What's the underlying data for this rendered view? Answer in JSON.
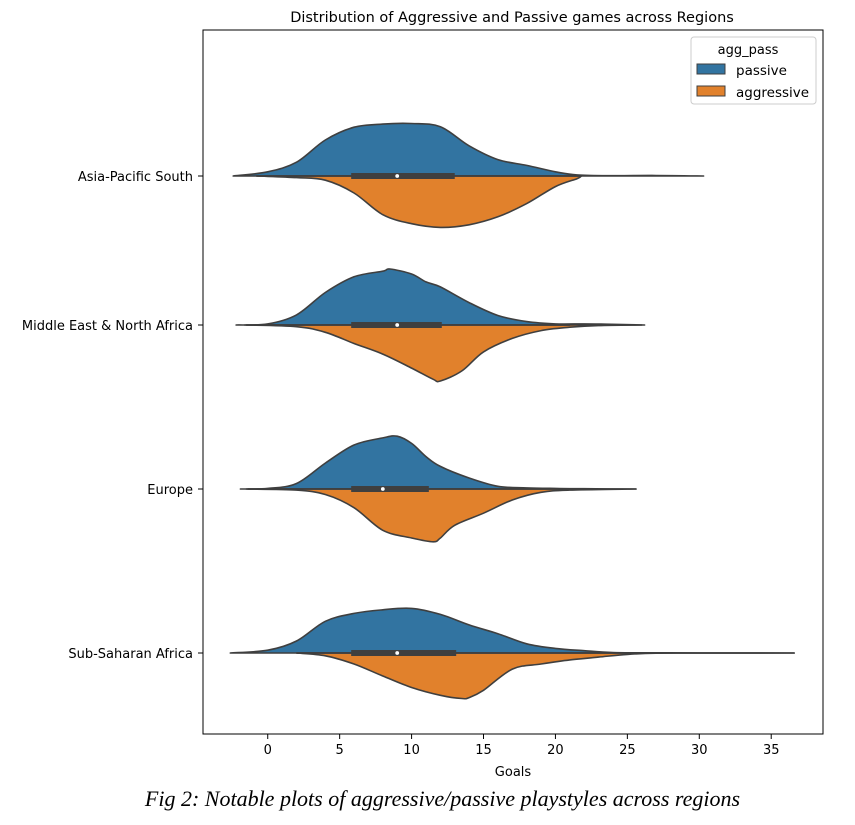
{
  "caption": "Fig 2: Notable plots of aggressive/passive playstyles across regions",
  "colors": {
    "passive": "#3274a1",
    "aggressive": "#e1812c",
    "outline": "#3f3f3f",
    "box": "#3f3f3f",
    "median": "#ffffff"
  },
  "chart_data": {
    "type": "violin",
    "split": true,
    "title": "Distribution of Aggressive and Passive games across Regions",
    "xlabel": "Goals",
    "ylabel": "",
    "xlim": [
      -4.5,
      38.6
    ],
    "xticks": [
      0,
      5,
      10,
      15,
      20,
      25,
      30,
      35
    ],
    "grid": false,
    "legend": {
      "title": "agg_pass",
      "position": "top-right",
      "entries": [
        "passive",
        "aggressive"
      ]
    },
    "categories": [
      "Asia-Pacific South",
      "Middle East & North Africa",
      "Europe",
      "Sub-Saharan Africa"
    ],
    "series": [
      {
        "name": "passive",
        "side": "upper",
        "profiles": [
          [
            [
              -2.4,
              0
            ],
            [
              0,
              0.08
            ],
            [
              2,
              0.26
            ],
            [
              4,
              0.68
            ],
            [
              6,
              0.92
            ],
            [
              8,
              0.98
            ],
            [
              10,
              0.99
            ],
            [
              12,
              0.93
            ],
            [
              14,
              0.57
            ],
            [
              16,
              0.31
            ],
            [
              18,
              0.2
            ],
            [
              20,
              0.08
            ],
            [
              21.5,
              0.02
            ],
            [
              24,
              0.005
            ],
            [
              27,
              0.01
            ],
            [
              30.3,
              0
            ]
          ],
          [
            [
              -2.2,
              0
            ],
            [
              0,
              0.02
            ],
            [
              2,
              0.18
            ],
            [
              4,
              0.58
            ],
            [
              6,
              0.86
            ],
            [
              8,
              0.96
            ],
            [
              8.5,
              1
            ],
            [
              10,
              0.91
            ],
            [
              11,
              0.77
            ],
            [
              12,
              0.68
            ],
            [
              14,
              0.4
            ],
            [
              16,
              0.17
            ],
            [
              18,
              0.06
            ],
            [
              20,
              0.02
            ],
            [
              22,
              0.02
            ],
            [
              23.5,
              0.015
            ],
            [
              26.2,
              0
            ]
          ],
          [
            [
              -1.9,
              0
            ],
            [
              0,
              0.01
            ],
            [
              2,
              0.1
            ],
            [
              4,
              0.47
            ],
            [
              6,
              0.8
            ],
            [
              8,
              0.93
            ],
            [
              9,
              0.96
            ],
            [
              10,
              0.83
            ],
            [
              11,
              0.59
            ],
            [
              12,
              0.41
            ],
            [
              14,
              0.2
            ],
            [
              16,
              0.05
            ],
            [
              18,
              0.02
            ],
            [
              20,
              0.01
            ],
            [
              22,
              0.005
            ],
            [
              25.6,
              0
            ]
          ],
          [
            [
              -2.6,
              0
            ],
            [
              0,
              0.06
            ],
            [
              2,
              0.26
            ],
            [
              4,
              0.69
            ],
            [
              6,
              0.86
            ],
            [
              8,
              0.94
            ],
            [
              10,
              0.97
            ],
            [
              12,
              0.84
            ],
            [
              14,
              0.61
            ],
            [
              16,
              0.42
            ],
            [
              18,
              0.2
            ],
            [
              20,
              0.1
            ],
            [
              22,
              0.05
            ],
            [
              24,
              0.01
            ],
            [
              27,
              0.005
            ],
            [
              30,
              0.002
            ],
            [
              36.6,
              0
            ]
          ]
        ]
      },
      {
        "name": "aggressive",
        "side": "lower",
        "profiles": [
          [
            [
              -0.7,
              0
            ],
            [
              2,
              0.03
            ],
            [
              4,
              0.08
            ],
            [
              6,
              0.32
            ],
            [
              8,
              0.73
            ],
            [
              10,
              0.9
            ],
            [
              12,
              0.97
            ],
            [
              14,
              0.92
            ],
            [
              16,
              0.77
            ],
            [
              18,
              0.52
            ],
            [
              20,
              0.2
            ],
            [
              21.5,
              0.05
            ],
            [
              21.8,
              0
            ]
          ],
          [
            [
              -1.6,
              0
            ],
            [
              2,
              0.03
            ],
            [
              4,
              0.13
            ],
            [
              6,
              0.33
            ],
            [
              8,
              0.52
            ],
            [
              10,
              0.77
            ],
            [
              11.5,
              0.97
            ],
            [
              12,
              1
            ],
            [
              13.5,
              0.82
            ],
            [
              15,
              0.48
            ],
            [
              17,
              0.24
            ],
            [
              19,
              0.1
            ],
            [
              21,
              0.04
            ],
            [
              23,
              0.01
            ],
            [
              26,
              0
            ]
          ],
          [
            [
              -1.5,
              0
            ],
            [
              2,
              0.02
            ],
            [
              4,
              0.1
            ],
            [
              6,
              0.34
            ],
            [
              8,
              0.75
            ],
            [
              10,
              0.89
            ],
            [
              11.5,
              0.96
            ],
            [
              12,
              0.89
            ],
            [
              13,
              0.66
            ],
            [
              15,
              0.44
            ],
            [
              17,
              0.2
            ],
            [
              19,
              0.06
            ],
            [
              21,
              0.02
            ],
            [
              25,
              0.002
            ],
            [
              25.6,
              0
            ]
          ],
          [
            [
              2,
              0
            ],
            [
              4,
              0.06
            ],
            [
              6,
              0.24
            ],
            [
              8,
              0.5
            ],
            [
              10,
              0.75
            ],
            [
              12,
              0.92
            ],
            [
              13.5,
              0.99
            ],
            [
              14,
              0.97
            ],
            [
              15,
              0.81
            ],
            [
              17,
              0.35
            ],
            [
              19,
              0.24
            ],
            [
              21,
              0.15
            ],
            [
              23,
              0.09
            ],
            [
              25,
              0.03
            ],
            [
              27,
              0.005
            ],
            [
              30,
              0.002
            ],
            [
              36.6,
              0
            ]
          ]
        ]
      }
    ],
    "box": [
      {
        "q1": 5.8,
        "median": 9,
        "q3": 13,
        "whisker_low": -0.8,
        "whisker_high": 21.8
      },
      {
        "q1": 5.8,
        "median": 9,
        "q3": 12.1,
        "whisker_low": -1.5,
        "whisker_high": 21
      },
      {
        "q1": 5.8,
        "median": 8,
        "q3": 11.2,
        "whisker_low": -1.4,
        "whisker_high": 20.5
      },
      {
        "q1": 5.8,
        "median": 9,
        "q3": 13.1,
        "whisker_low": 2,
        "whisker_high": 27
      }
    ]
  }
}
